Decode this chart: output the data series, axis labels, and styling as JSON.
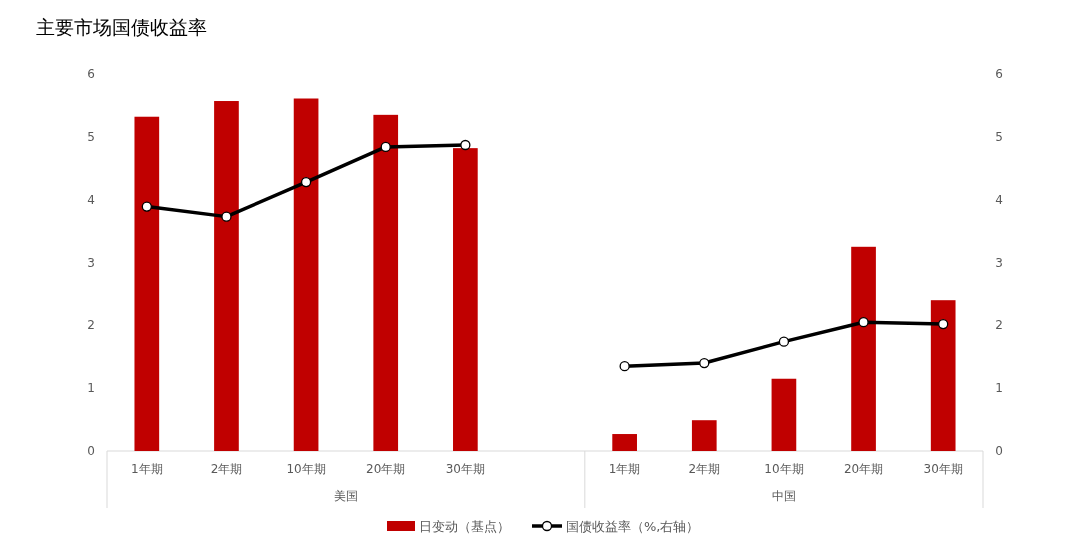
{
  "chart_data": {
    "type": "bar",
    "title": "主要市场国债收益率",
    "categories": [
      "1年期",
      "2年期",
      "10年期",
      "20年期",
      "30年期",
      null,
      "1年期",
      "2年期",
      "10年期",
      "20年期",
      "30年期"
    ],
    "series": [
      {
        "name": "日变动（基点）",
        "color": "#c00000",
        "values": [
          5.32,
          5.57,
          5.61,
          5.35,
          4.82,
          null,
          0.27,
          0.49,
          1.15,
          3.25,
          2.4
        ]
      },
      {
        "name": "国债收益率（%,右轴）",
        "type": "line",
        "axis": "y2",
        "color": "#000000",
        "marker": "circle",
        "values": [
          3.89,
          3.73,
          4.28,
          4.84,
          4.87,
          null,
          1.35,
          1.4,
          1.74,
          2.05,
          2.02
        ]
      }
    ],
    "annotations": [
      "美国",
      "中国"
    ],
    "ylim": [
      0,
      6
    ],
    "yticks": [
      0,
      1,
      2,
      3,
      4,
      5,
      6
    ],
    "y2lim": [
      0,
      6
    ],
    "y2ticks": [
      0,
      1,
      2,
      3,
      4,
      5,
      6
    ],
    "grid": false,
    "legend": "bottom"
  }
}
